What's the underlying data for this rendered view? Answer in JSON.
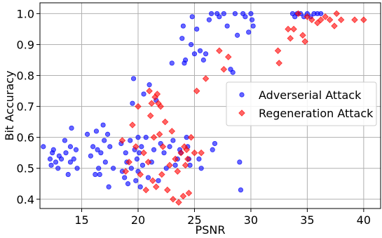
{
  "chart_data": {
    "type": "scatter",
    "title": "",
    "xlabel": "PSNR",
    "ylabel": "Bit Accuracy",
    "xlim": [
      11.3,
      41.5
    ],
    "ylim": [
      0.37,
      1.035
    ],
    "xticks": [
      15,
      20,
      25,
      30,
      35,
      40
    ],
    "yticks": [
      0.4,
      0.5,
      0.6,
      0.7,
      0.8,
      0.9,
      1.0
    ],
    "xtick_labels": [
      "15",
      "20",
      "25",
      "30",
      "35",
      "40"
    ],
    "ytick_labels": [
      "0.4",
      "0.5",
      "0.6",
      "0.7",
      "0.8",
      "0.9",
      "1.0"
    ],
    "grid": true,
    "legend_position": "center-right",
    "series": [
      {
        "name": "Adverserial Attack",
        "marker": "circle",
        "color": "#0000ff",
        "points": [
          [
            11.6,
            0.57
          ],
          [
            12.2,
            0.53
          ],
          [
            12.3,
            0.51
          ],
          [
            12.4,
            0.55
          ],
          [
            12.5,
            0.56
          ],
          [
            12.7,
            0.52
          ],
          [
            12.9,
            0.5
          ],
          [
            13.0,
            0.54
          ],
          [
            13.2,
            0.53
          ],
          [
            13.5,
            0.59
          ],
          [
            13.6,
            0.55
          ],
          [
            13.8,
            0.48
          ],
          [
            14.0,
            0.57
          ],
          [
            14.0,
            0.52
          ],
          [
            14.1,
            0.63
          ],
          [
            14.3,
            0.53
          ],
          [
            14.5,
            0.56
          ],
          [
            14.6,
            0.5
          ],
          [
            15.5,
            0.61
          ],
          [
            15.8,
            0.54
          ],
          [
            16.0,
            0.57
          ],
          [
            16.2,
            0.48
          ],
          [
            16.3,
            0.62
          ],
          [
            16.4,
            0.56
          ],
          [
            16.5,
            0.5
          ],
          [
            16.6,
            0.48
          ],
          [
            16.7,
            0.55
          ],
          [
            16.9,
            0.64
          ],
          [
            17.0,
            0.59
          ],
          [
            17.1,
            0.52
          ],
          [
            17.3,
            0.61
          ],
          [
            17.4,
            0.44
          ],
          [
            17.5,
            0.57
          ],
          [
            17.8,
            0.5
          ],
          [
            18.5,
            0.58
          ],
          [
            18.6,
            0.49
          ],
          [
            18.8,
            0.47
          ],
          [
            18.9,
            0.55
          ],
          [
            19.0,
            0.52
          ],
          [
            19.1,
            0.45
          ],
          [
            19.3,
            0.59
          ],
          [
            19.4,
            0.5
          ],
          [
            19.5,
            0.71
          ],
          [
            19.6,
            0.79
          ],
          [
            19.7,
            0.56
          ],
          [
            19.8,
            0.46
          ],
          [
            19.9,
            0.53
          ],
          [
            20.0,
            0.6
          ],
          [
            20.0,
            0.49
          ],
          [
            20.1,
            0.55
          ],
          [
            20.2,
            0.44
          ],
          [
            20.3,
            0.57
          ],
          [
            20.4,
            0.51
          ],
          [
            20.5,
            0.74
          ],
          [
            20.7,
            0.6
          ],
          [
            20.9,
            0.47
          ],
          [
            21.0,
            0.77
          ],
          [
            21.2,
            0.52
          ],
          [
            21.4,
            0.56
          ],
          [
            21.6,
            0.72
          ],
          [
            21.8,
            0.46
          ],
          [
            22.0,
            0.58
          ],
          [
            22.3,
            0.55
          ],
          [
            22.5,
            0.5
          ],
          [
            22.8,
            0.57
          ],
          [
            23.0,
            0.84
          ],
          [
            23.1,
            0.59
          ],
          [
            23.3,
            0.51
          ],
          [
            23.5,
            0.53
          ],
          [
            23.7,
            0.56
          ],
          [
            23.8,
            0.55
          ],
          [
            23.9,
            0.92
          ],
          [
            24.0,
            0.96
          ],
          [
            24.1,
            0.84
          ],
          [
            24.2,
            0.85
          ],
          [
            24.3,
            0.6
          ],
          [
            24.4,
            0.57
          ],
          [
            24.5,
            0.53
          ],
          [
            24.6,
            0.51
          ],
          [
            24.7,
            0.9
          ],
          [
            24.8,
            0.99
          ],
          [
            25.0,
            0.87
          ],
          [
            25.2,
            0.95
          ],
          [
            25.4,
            0.53
          ],
          [
            25.5,
            0.88
          ],
          [
            25.6,
            0.5
          ],
          [
            25.8,
            0.85
          ],
          [
            26.0,
            0.87
          ],
          [
            26.3,
            0.98
          ],
          [
            26.5,
            1.0
          ],
          [
            26.6,
            0.56
          ],
          [
            26.8,
            0.58
          ],
          [
            27.0,
            1.0
          ],
          [
            27.2,
            0.99
          ],
          [
            27.6,
            1.0
          ],
          [
            27.9,
            0.96
          ],
          [
            28.2,
            0.82
          ],
          [
            28.4,
            0.81
          ],
          [
            28.6,
            1.0
          ],
          [
            28.8,
            0.93
          ],
          [
            29.0,
            0.52
          ],
          [
            29.1,
            0.43
          ],
          [
            29.3,
            1.0
          ],
          [
            29.5,
            0.99
          ],
          [
            29.8,
            0.94
          ],
          [
            30.0,
            1.0
          ],
          [
            30.1,
            0.98
          ],
          [
            30.2,
            0.96
          ],
          [
            33.7,
            1.0
          ],
          [
            33.9,
            0.99
          ],
          [
            34.1,
            1.0
          ],
          [
            34.4,
            1.0
          ],
          [
            34.7,
            0.99
          ],
          [
            35.0,
            1.0
          ],
          [
            35.3,
            0.99
          ],
          [
            35.6,
            1.0
          ],
          [
            35.9,
            1.0
          ],
          [
            36.2,
            1.0
          ]
        ]
      },
      {
        "name": "Regeneration Attack",
        "marker": "diamond",
        "color": "#ff0000",
        "points": [
          [
            18.6,
            0.59
          ],
          [
            18.9,
            0.49
          ],
          [
            19.2,
            0.52
          ],
          [
            19.5,
            0.64
          ],
          [
            19.8,
            0.57
          ],
          [
            20.0,
            0.7
          ],
          [
            20.2,
            0.48
          ],
          [
            20.5,
            0.55
          ],
          [
            20.7,
            0.43
          ],
          [
            20.9,
            0.52
          ],
          [
            21.0,
            0.75
          ],
          [
            21.1,
            0.67
          ],
          [
            21.2,
            0.71
          ],
          [
            21.3,
            0.46
          ],
          [
            21.4,
            0.6
          ],
          [
            21.5,
            0.73
          ],
          [
            21.6,
            0.44
          ],
          [
            21.7,
            0.74
          ],
          [
            21.8,
            0.71
          ],
          [
            21.9,
            0.61
          ],
          [
            22.0,
            0.7
          ],
          [
            22.1,
            0.48
          ],
          [
            22.2,
            0.57
          ],
          [
            22.4,
            0.65
          ],
          [
            22.6,
            0.43
          ],
          [
            22.8,
            0.51
          ],
          [
            23.0,
            0.62
          ],
          [
            23.1,
            0.4
          ],
          [
            23.3,
            0.53
          ],
          [
            23.5,
            0.49
          ],
          [
            23.6,
            0.39
          ],
          [
            23.8,
            0.55
          ],
          [
            24.0,
            0.41
          ],
          [
            24.1,
            0.57
          ],
          [
            24.2,
            0.51
          ],
          [
            24.3,
            0.56
          ],
          [
            24.4,
            0.53
          ],
          [
            24.5,
            0.42
          ],
          [
            24.7,
            0.6
          ],
          [
            25.0,
            0.55
          ],
          [
            25.2,
            0.75
          ],
          [
            25.6,
            0.55
          ],
          [
            26.0,
            0.79
          ],
          [
            27.2,
            0.88
          ],
          [
            27.6,
            0.82
          ],
          [
            28.0,
            0.86
          ],
          [
            32.4,
            0.88
          ],
          [
            32.5,
            0.84
          ],
          [
            33.3,
            0.95
          ],
          [
            33.5,
            0.92
          ],
          [
            33.8,
            0.95
          ],
          [
            34.2,
            1.0
          ],
          [
            34.6,
            0.93
          ],
          [
            34.8,
            0.91
          ],
          [
            35.0,
            0.99
          ],
          [
            35.4,
            0.98
          ],
          [
            35.9,
            0.97
          ],
          [
            36.2,
            0.98
          ],
          [
            36.6,
            0.99
          ],
          [
            37.0,
            0.98
          ],
          [
            37.4,
            0.96
          ],
          [
            37.6,
            1.0
          ],
          [
            38.0,
            0.98
          ],
          [
            39.2,
            0.98
          ],
          [
            40.0,
            0.98
          ]
        ]
      }
    ]
  }
}
